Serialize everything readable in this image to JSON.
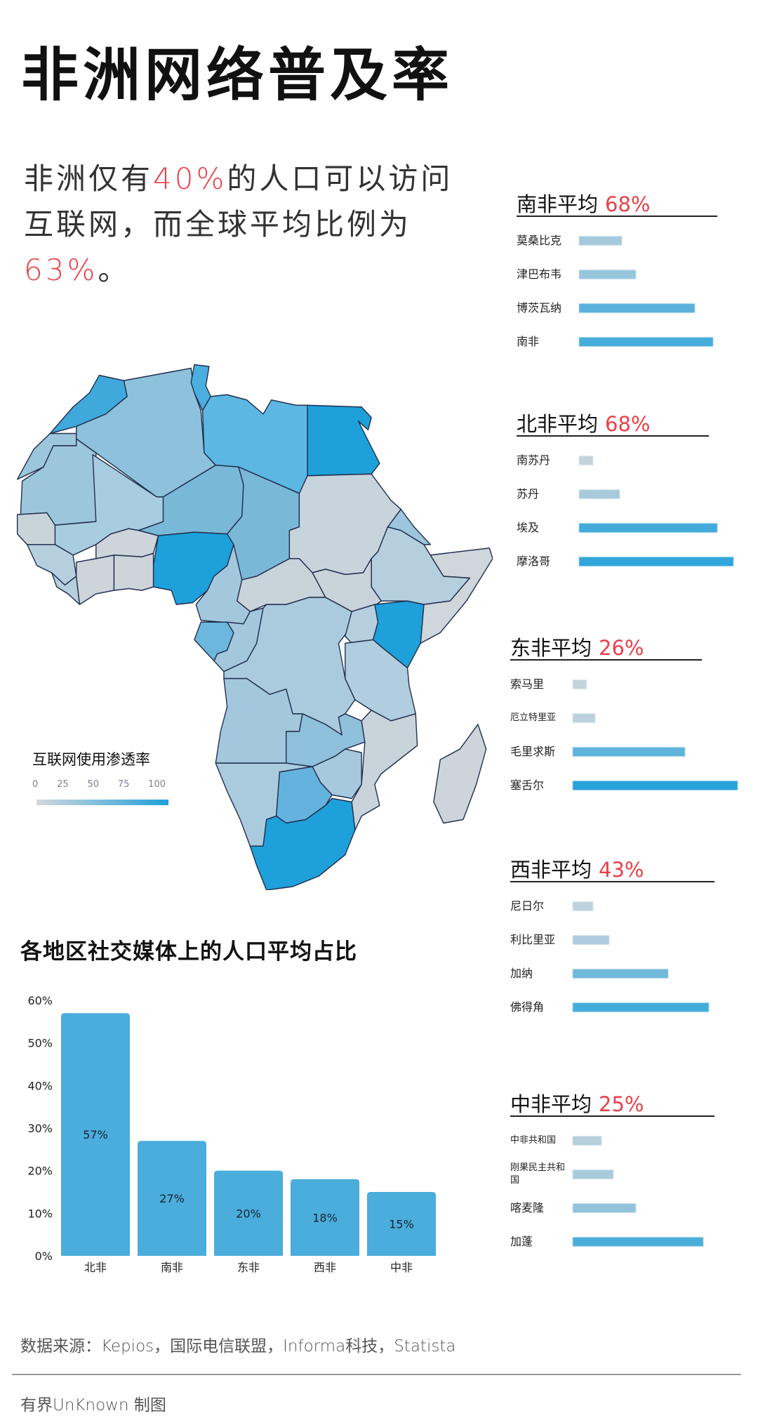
{
  "title": "非洲网络普及率",
  "intro": {
    "part1": "非洲仅有",
    "highlight1": "40%",
    "part2": "的人口可以访问互联网，而全球平均比例为",
    "highlight2": "63%",
    "part3": "。"
  },
  "colors": {
    "accent_red": "#e8414a",
    "scale_low": "#d3d8dc",
    "scale_high": "#1ea0da",
    "bar_chart": "#4aaddb"
  },
  "map": {
    "legend_title": "互联网使用渗透率",
    "legend_ticks": [
      "0",
      "25",
      "50",
      "75",
      "100"
    ]
  },
  "regions": [
    {
      "name": "南非平均",
      "avg": "68%",
      "countries": [
        {
          "label": "莫桑比克",
          "value": 21
        },
        {
          "label": "津巴布韦",
          "value": 28
        },
        {
          "label": "博茨瓦纳",
          "value": 57
        },
        {
          "label": "南非",
          "value": 66
        }
      ]
    },
    {
      "name": "北非平均",
      "avg": "68%",
      "countries": [
        {
          "label": "南苏丹",
          "value": 7
        },
        {
          "label": "苏丹",
          "value": 20
        },
        {
          "label": "埃及",
          "value": 68
        },
        {
          "label": "摩洛哥",
          "value": 76
        }
      ]
    },
    {
      "name": "东非平均",
      "avg": "26%",
      "countries": [
        {
          "label": "索马里",
          "value": 7
        },
        {
          "label": "厄立特里亚",
          "value": 11
        },
        {
          "label": "毛里求斯",
          "value": 55
        },
        {
          "label": "塞舌尔",
          "value": 81
        }
      ]
    },
    {
      "name": "西非平均",
      "avg": "43%",
      "countries": [
        {
          "label": "尼日尔",
          "value": 10
        },
        {
          "label": "利比里亚",
          "value": 18
        },
        {
          "label": "加纳",
          "value": 47
        },
        {
          "label": "佛得角",
          "value": 67
        }
      ]
    },
    {
      "name": "中非平均",
      "avg": "25%",
      "countries": [
        {
          "label": "中非共和国",
          "value": 14
        },
        {
          "label": "刚果民主共和国",
          "value": 20
        },
        {
          "label": "喀麦隆",
          "value": 31
        },
        {
          "label": "加蓬",
          "value": 64
        }
      ]
    }
  ],
  "chart_data": {
    "type": "bar",
    "title": "各地区社交媒体上的人口平均占比",
    "categories": [
      "北非",
      "南非",
      "东非",
      "西非",
      "中非"
    ],
    "values": [
      57,
      27,
      20,
      18,
      15
    ],
    "data_labels": [
      "57%",
      "27%",
      "20%",
      "18%",
      "15%"
    ],
    "yticks": [
      "0%",
      "10%",
      "20%",
      "30%",
      "40%",
      "50%",
      "60%"
    ],
    "ylim": [
      0,
      60
    ],
    "grid": false,
    "xlabel": "",
    "ylabel": ""
  },
  "footer": {
    "source": "数据来源：Kepios，国际电信联盟，Informa科技，Statista",
    "credit": "有界UnKnown 制图"
  }
}
